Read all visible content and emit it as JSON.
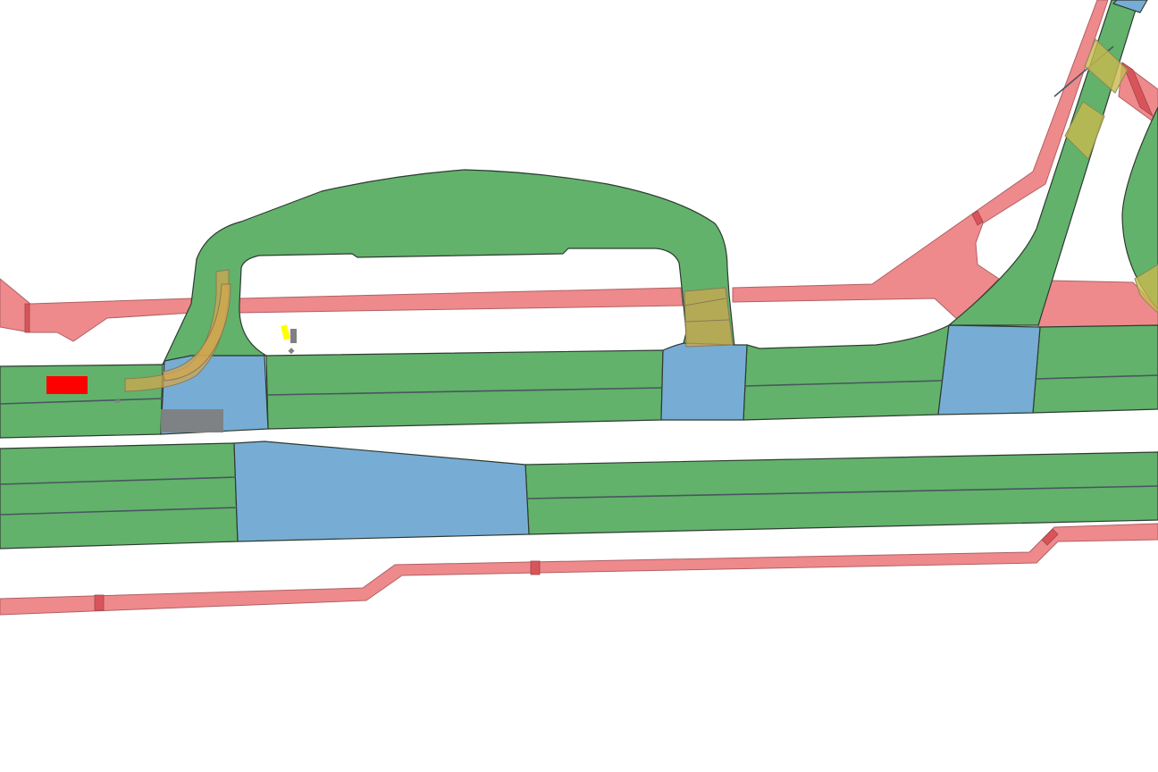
{
  "map": {
    "background": "#ffffff",
    "colors": {
      "lane": "#62b26b",
      "junction": "#77add4",
      "sidewalk": "#ee8a8c",
      "crosswalk": "#d4a64e",
      "ego_vehicle": "#ff0000",
      "traffic_light": "#ffff00",
      "parked_vehicle": "#808080"
    },
    "layers": [
      "lanes",
      "junctions",
      "sidewalks",
      "crosswalks",
      "agents"
    ]
  }
}
